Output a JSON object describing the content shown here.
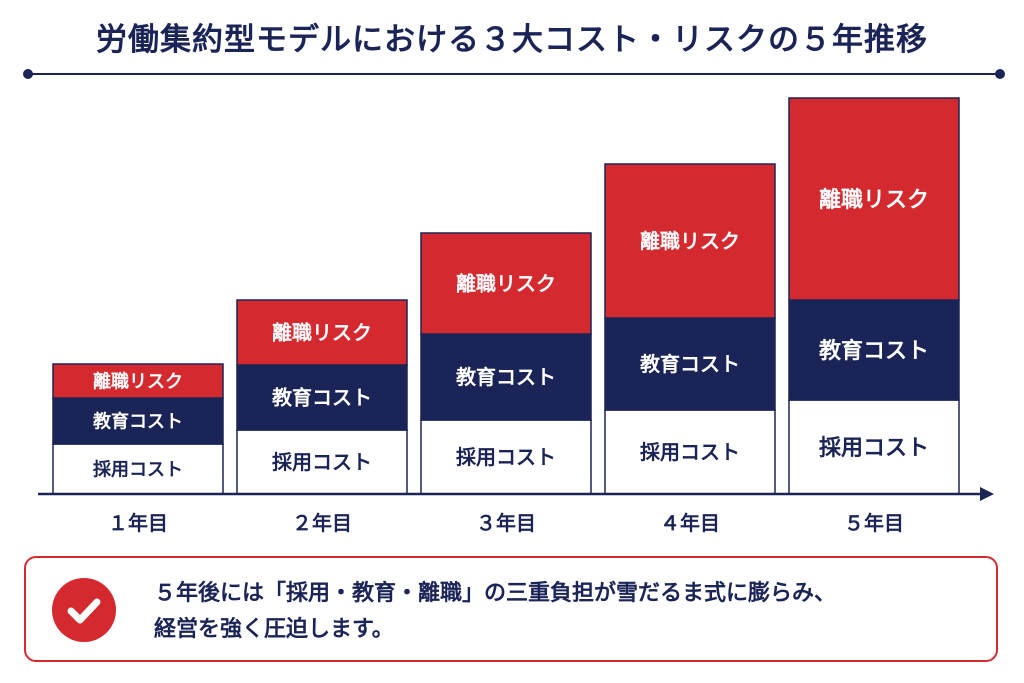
{
  "title": "労働集約型モデルにおける３大コスト・リスクの５年推移",
  "colors": {
    "navy": "#1b2456",
    "red": "#d42a2f",
    "white": "#ffffff",
    "border": "#1b2456"
  },
  "chart_data": {
    "type": "bar",
    "stacked": true,
    "categories": [
      "１年目",
      "２年目",
      "３年目",
      "４年目",
      "５年目"
    ],
    "series": [
      {
        "name": "採用コスト",
        "color": "#ffffff",
        "values": [
          50,
          64,
          74,
          84,
          94
        ]
      },
      {
        "name": "教育コスト",
        "color": "#1b2456",
        "values": [
          46,
          65,
          86,
          92,
          100
        ]
      },
      {
        "name": "離職リスク",
        "color": "#d42a2f",
        "values": [
          34,
          65,
          101,
          154,
          202
        ]
      }
    ],
    "ylim": [
      0,
      400
    ],
    "grid": false,
    "legend": "none"
  },
  "note": {
    "icon": "check-circle-icon",
    "lines": [
      "５年後には「採用・教育・離職」の三重負担が雪だるま式に膨らみ、",
      "経営を強く圧迫します。"
    ]
  }
}
